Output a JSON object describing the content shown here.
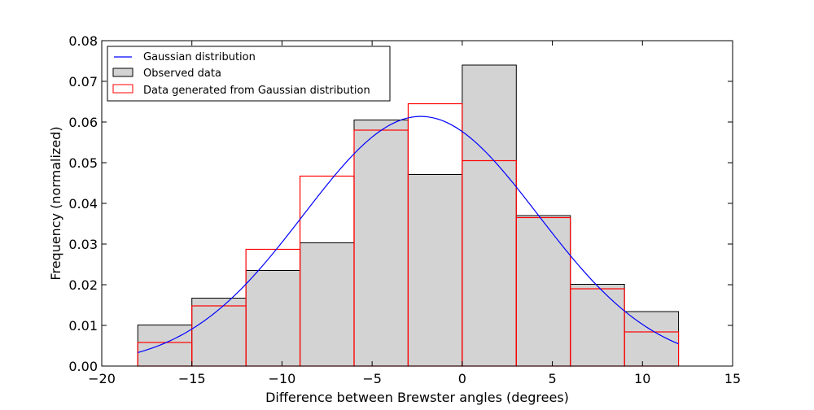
{
  "chart_data": {
    "type": "bar",
    "title": "",
    "xlabel": "Difference between Brewster angles (degrees)",
    "ylabel": "Frequency (normalized)",
    "xlim": [
      -20,
      15
    ],
    "ylim": [
      0,
      0.08
    ],
    "xticks": [
      -20,
      -15,
      -10,
      -5,
      0,
      5,
      10,
      15
    ],
    "xtick_labels": [
      "−20",
      "−15",
      "−10",
      "−5",
      "0",
      "5",
      "10",
      "15"
    ],
    "yticks": [
      0,
      0.01,
      0.02,
      0.03,
      0.04,
      0.05,
      0.06,
      0.07,
      0.08
    ],
    "ytick_labels": [
      "0.00",
      "0.01",
      "0.02",
      "0.03",
      "0.04",
      "0.05",
      "0.06",
      "0.07",
      "0.08"
    ],
    "bin_edges": [
      -18,
      -15,
      -12,
      -9,
      -6,
      -3,
      0,
      3,
      6,
      9,
      12
    ],
    "grid": false,
    "legend_position": "top-left",
    "series": [
      {
        "name": "Gaussian distribution",
        "type": "line",
        "color": "#0000ff",
        "mean": -2.3,
        "std": 6.5,
        "x_range": [
          -18,
          12
        ]
      },
      {
        "name": "Observed data",
        "type": "bar",
        "fill": "#d3d3d3",
        "stroke": "#000000",
        "values": [
          0.0101,
          0.0167,
          0.0235,
          0.0303,
          0.0605,
          0.0471,
          0.074,
          0.037,
          0.0201,
          0.0134
        ]
      },
      {
        "name": "Data generated from Gaussian distribution",
        "type": "step",
        "fill": "none",
        "stroke": "#ff0000",
        "values": [
          0.0058,
          0.0148,
          0.0287,
          0.0467,
          0.058,
          0.0645,
          0.0505,
          0.0365,
          0.019,
          0.0084
        ]
      }
    ]
  }
}
